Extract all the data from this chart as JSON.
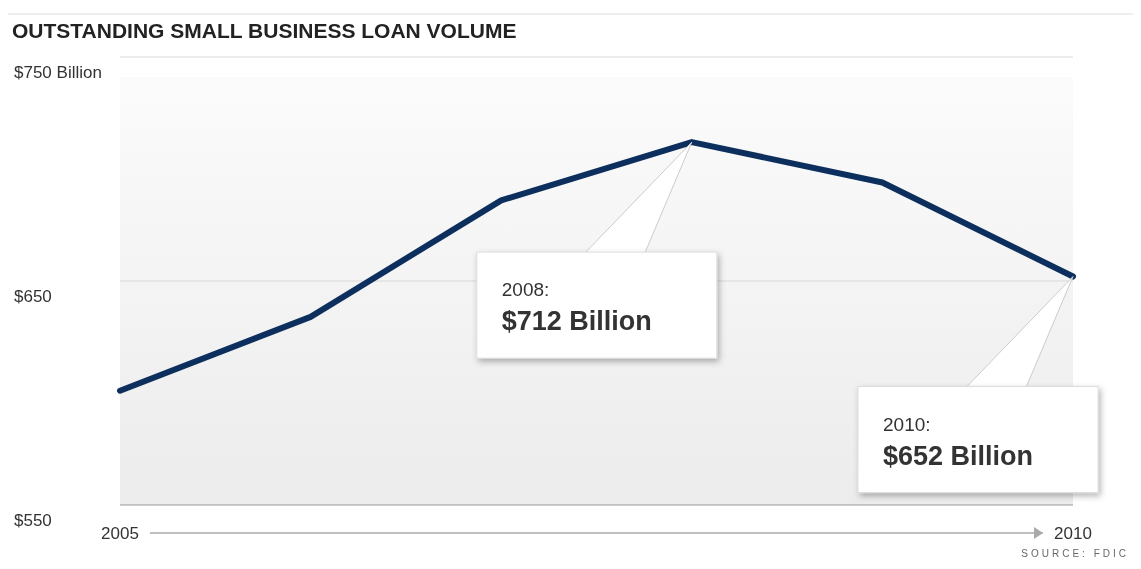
{
  "chart_data": {
    "type": "line",
    "title": "OUTSTANDING SMALL BUSINESS LOAN VOLUME",
    "x": [
      2005,
      2006,
      2007,
      2008,
      2009,
      2010
    ],
    "series": [
      {
        "color": "#0d2f5e",
        "values": [
          601,
          634,
          686,
          712,
          694,
          652
        ]
      }
    ],
    "xlim": [
      2005,
      2010
    ],
    "xticks": [
      2005,
      2010
    ],
    "ylim": [
      550,
      750
    ],
    "yticks": [
      {
        "value": 750,
        "label": "$750 Billion"
      },
      {
        "value": 650,
        "label": "$650"
      },
      {
        "value": 550,
        "label": "$550"
      }
    ],
    "grid": "y",
    "marker": "none",
    "line_style": "solid",
    "annotations": [
      "2008: $712 Billion",
      "2010: $652 Billion",
      "SOURCE: FDIC"
    ]
  }
}
